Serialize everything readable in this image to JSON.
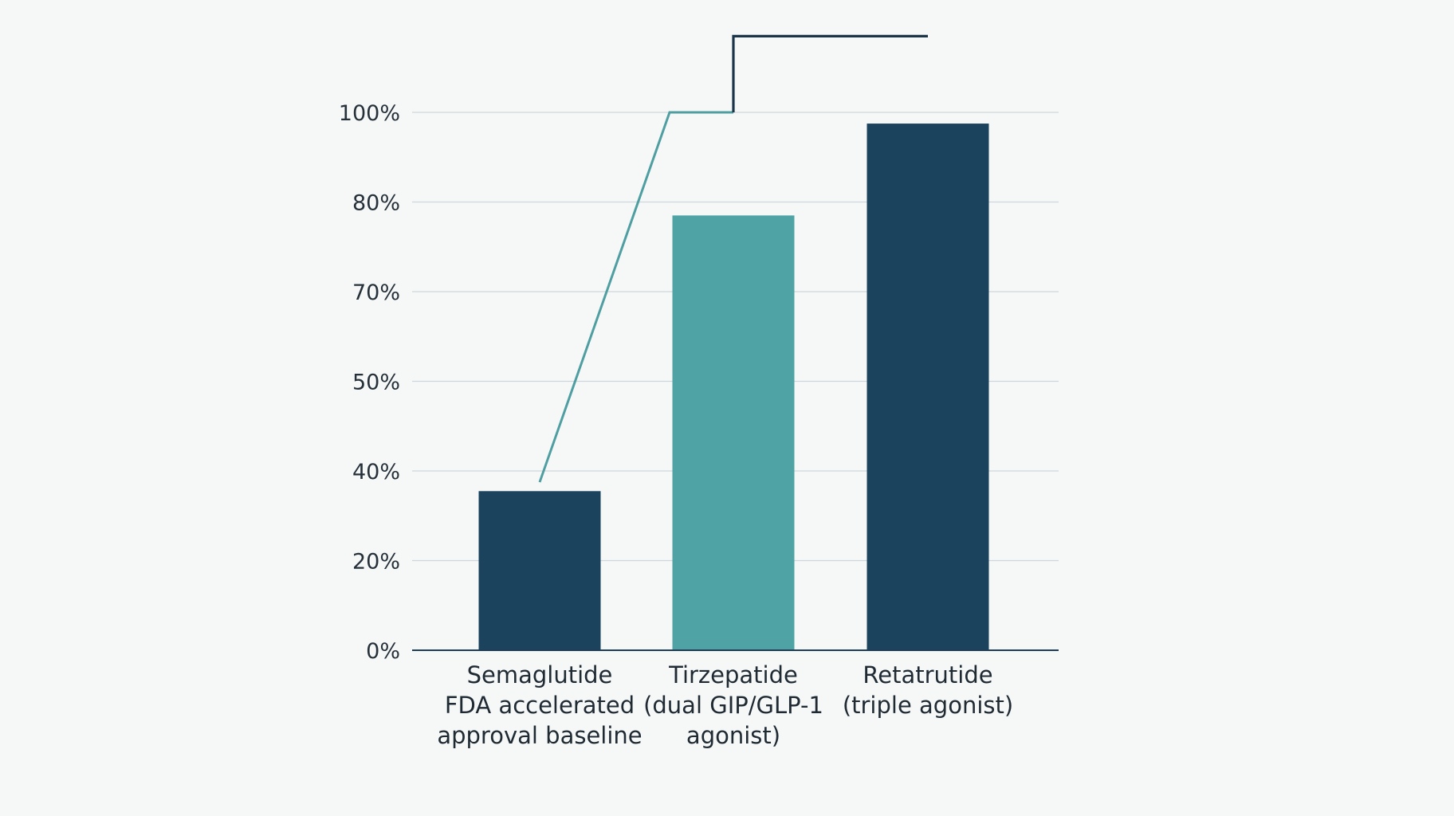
{
  "colors": {
    "background": "#f6f8f8",
    "grid": "#cfd6dc",
    "axis": "#1e3d56",
    "dark_bar": "#1c435e",
    "teal_bar": "#4fa3a5",
    "teal_line": "#4f9ea1",
    "dark_line": "#1c3448"
  },
  "chart_data": {
    "type": "bar",
    "title": "",
    "xlabel": "",
    "ylabel": "",
    "y_ticks": [
      {
        "value": 0,
        "label": "0%"
      },
      {
        "value": 20,
        "label": "20%"
      },
      {
        "value": 40,
        "label": "40%"
      },
      {
        "value": 50,
        "label": "50%"
      },
      {
        "value": 70,
        "label": "70%"
      },
      {
        "value": 80,
        "label": "80%"
      },
      {
        "value": 100,
        "label": "100%"
      }
    ],
    "grid": true,
    "legend": "none",
    "categories": [
      {
        "lines": [
          "Semaglutide",
          "FDA accelerated",
          "approval baseline"
        ]
      },
      {
        "lines": [
          "Tirzepatide",
          "(dual GIP/GLP-1",
          "agonist)"
        ]
      },
      {
        "lines": [
          "Retatrutide",
          "(triple agonist)"
        ]
      }
    ],
    "values": [
      35.5,
      78.5,
      97.5
    ],
    "bar_colors": [
      "dark",
      "teal",
      "dark"
    ],
    "connectors": [
      {
        "color": "teal",
        "points": [
          {
            "bar": 0,
            "y": 37.5
          },
          {
            "bar": 1,
            "side": "left",
            "y": 100
          },
          {
            "bar": 1,
            "y": 100
          }
        ]
      },
      {
        "color": "dark",
        "points": [
          {
            "bar": 1,
            "y": 100
          },
          {
            "bar": 1,
            "y": 117
          },
          {
            "bar": 2,
            "y": 117
          }
        ]
      }
    ]
  }
}
